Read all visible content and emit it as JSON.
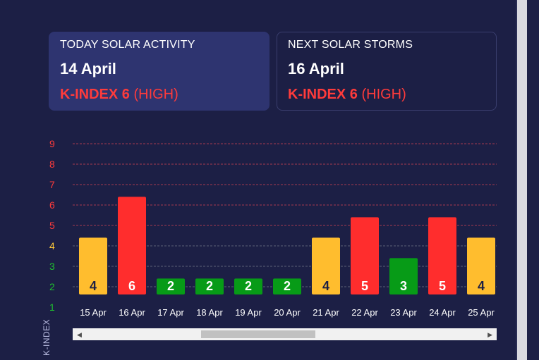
{
  "today": {
    "label": "TODAY SOLAR ACTIVITY",
    "date": "14 April",
    "kindex_strong": "K-INDEX 6",
    "kindex_level": "(HIGH)"
  },
  "next": {
    "label": "NEXT SOLAR STORMS",
    "date": "16 April",
    "kindex_strong": "K-INDEX 6",
    "kindex_level": "(HIGH)"
  },
  "colors": {
    "low": "#079b17",
    "moderate": "#ffbd2e",
    "high": "#ff2d2d",
    "background": "#1c1f45"
  },
  "chart_data": {
    "type": "bar",
    "title": "",
    "xlabel": "",
    "ylabel": "K-INDEX",
    "ylim": [
      1,
      9
    ],
    "yticks": [
      1,
      2,
      3,
      4,
      5,
      6,
      7,
      8,
      9
    ],
    "categories": [
      "15 Apr",
      "16 Apr",
      "17 Apr",
      "18 Apr",
      "19 Apr",
      "20 Apr",
      "21 Apr",
      "22 Apr",
      "23 Apr",
      "24 Apr",
      "25 Apr"
    ],
    "values": [
      4,
      6,
      2,
      2,
      2,
      2,
      4,
      5,
      3,
      5,
      4
    ],
    "data_labels": true,
    "grid": true
  }
}
